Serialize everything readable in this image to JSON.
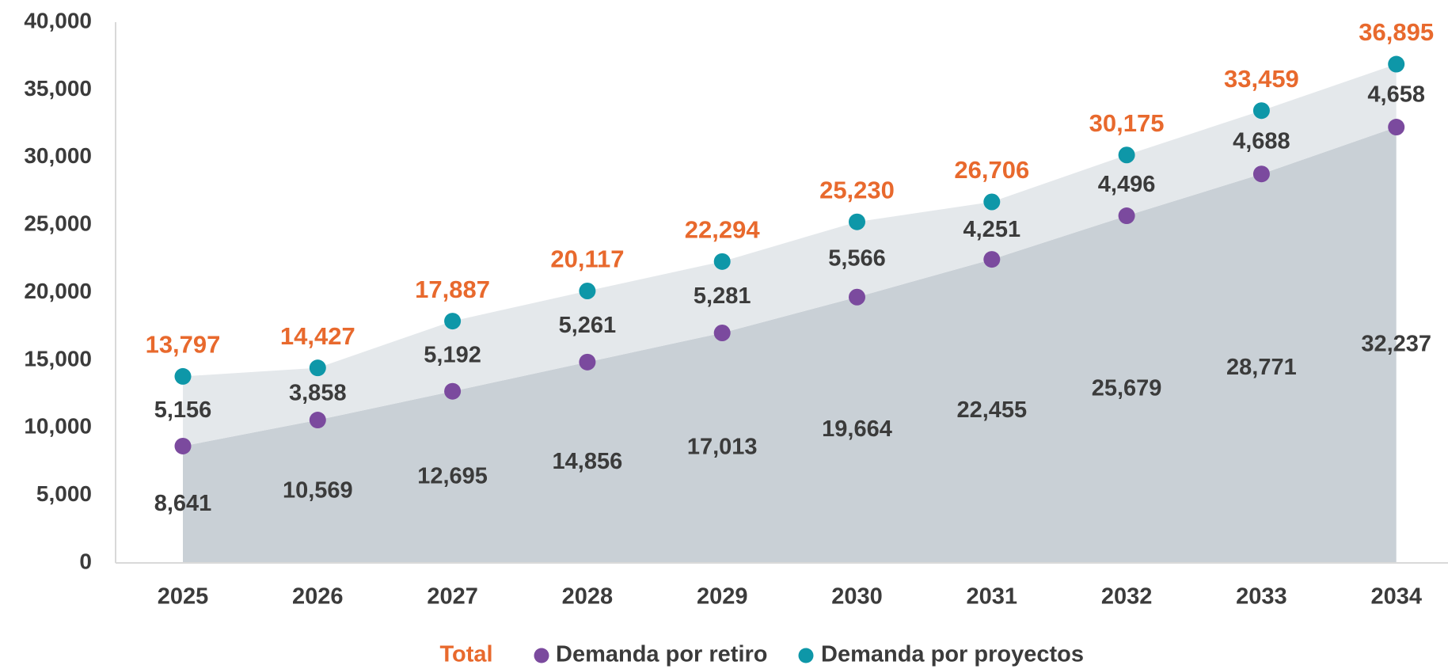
{
  "chart_data": {
    "type": "stacked-area",
    "categories": [
      "2025",
      "2026",
      "2027",
      "2028",
      "2029",
      "2030",
      "2031",
      "2032",
      "2033",
      "2034"
    ],
    "series": [
      {
        "name": "Total",
        "color": "#e8692d",
        "values": [
          13797,
          14427,
          17887,
          20117,
          22294,
          25230,
          26706,
          30175,
          33459,
          36895
        ]
      },
      {
        "name": "Demanda por retiro",
        "color": "#7b4a9e",
        "values": [
          8641,
          10569,
          12695,
          14856,
          17013,
          19664,
          22455,
          25679,
          28771,
          32237
        ]
      },
      {
        "name": "Demanda por proyectos",
        "color": "#0e97a8",
        "values": [
          5156,
          3858,
          5192,
          5261,
          5281,
          5566,
          4251,
          4496,
          4688,
          4658
        ]
      }
    ],
    "ylim": [
      0,
      40000
    ],
    "yticks": [
      0,
      {
        "value": 5000,
        "label": "5,000"
      },
      {
        "value": 10000,
        "label": "10,000"
      },
      {
        "value": 15000,
        "label": "15,000"
      },
      {
        "value": 20000,
        "label": "20,000"
      },
      {
        "value": 25000,
        "label": "25,000"
      },
      {
        "value": 30000,
        "label": "30,000"
      },
      {
        "value": 35000,
        "label": "35,000"
      },
      {
        "value": 40000,
        "label": "40,000"
      }
    ],
    "value_labels": [
      [
        "13,797",
        "14,427",
        "17,887",
        "20,117",
        "22,294",
        "25,230",
        "26,706",
        "30,175",
        "33,459",
        "36,895"
      ],
      [
        "8,641",
        "10,569",
        "12,695",
        "14,856",
        "17,013",
        "19,664",
        "22,455",
        "25,679",
        "28,771",
        "32,237"
      ],
      [
        "5,156",
        "3,858",
        "5,192",
        "5,261",
        "5,281",
        "5,566",
        "4,251",
        "4,496",
        "4,688",
        "4,658"
      ]
    ]
  }
}
